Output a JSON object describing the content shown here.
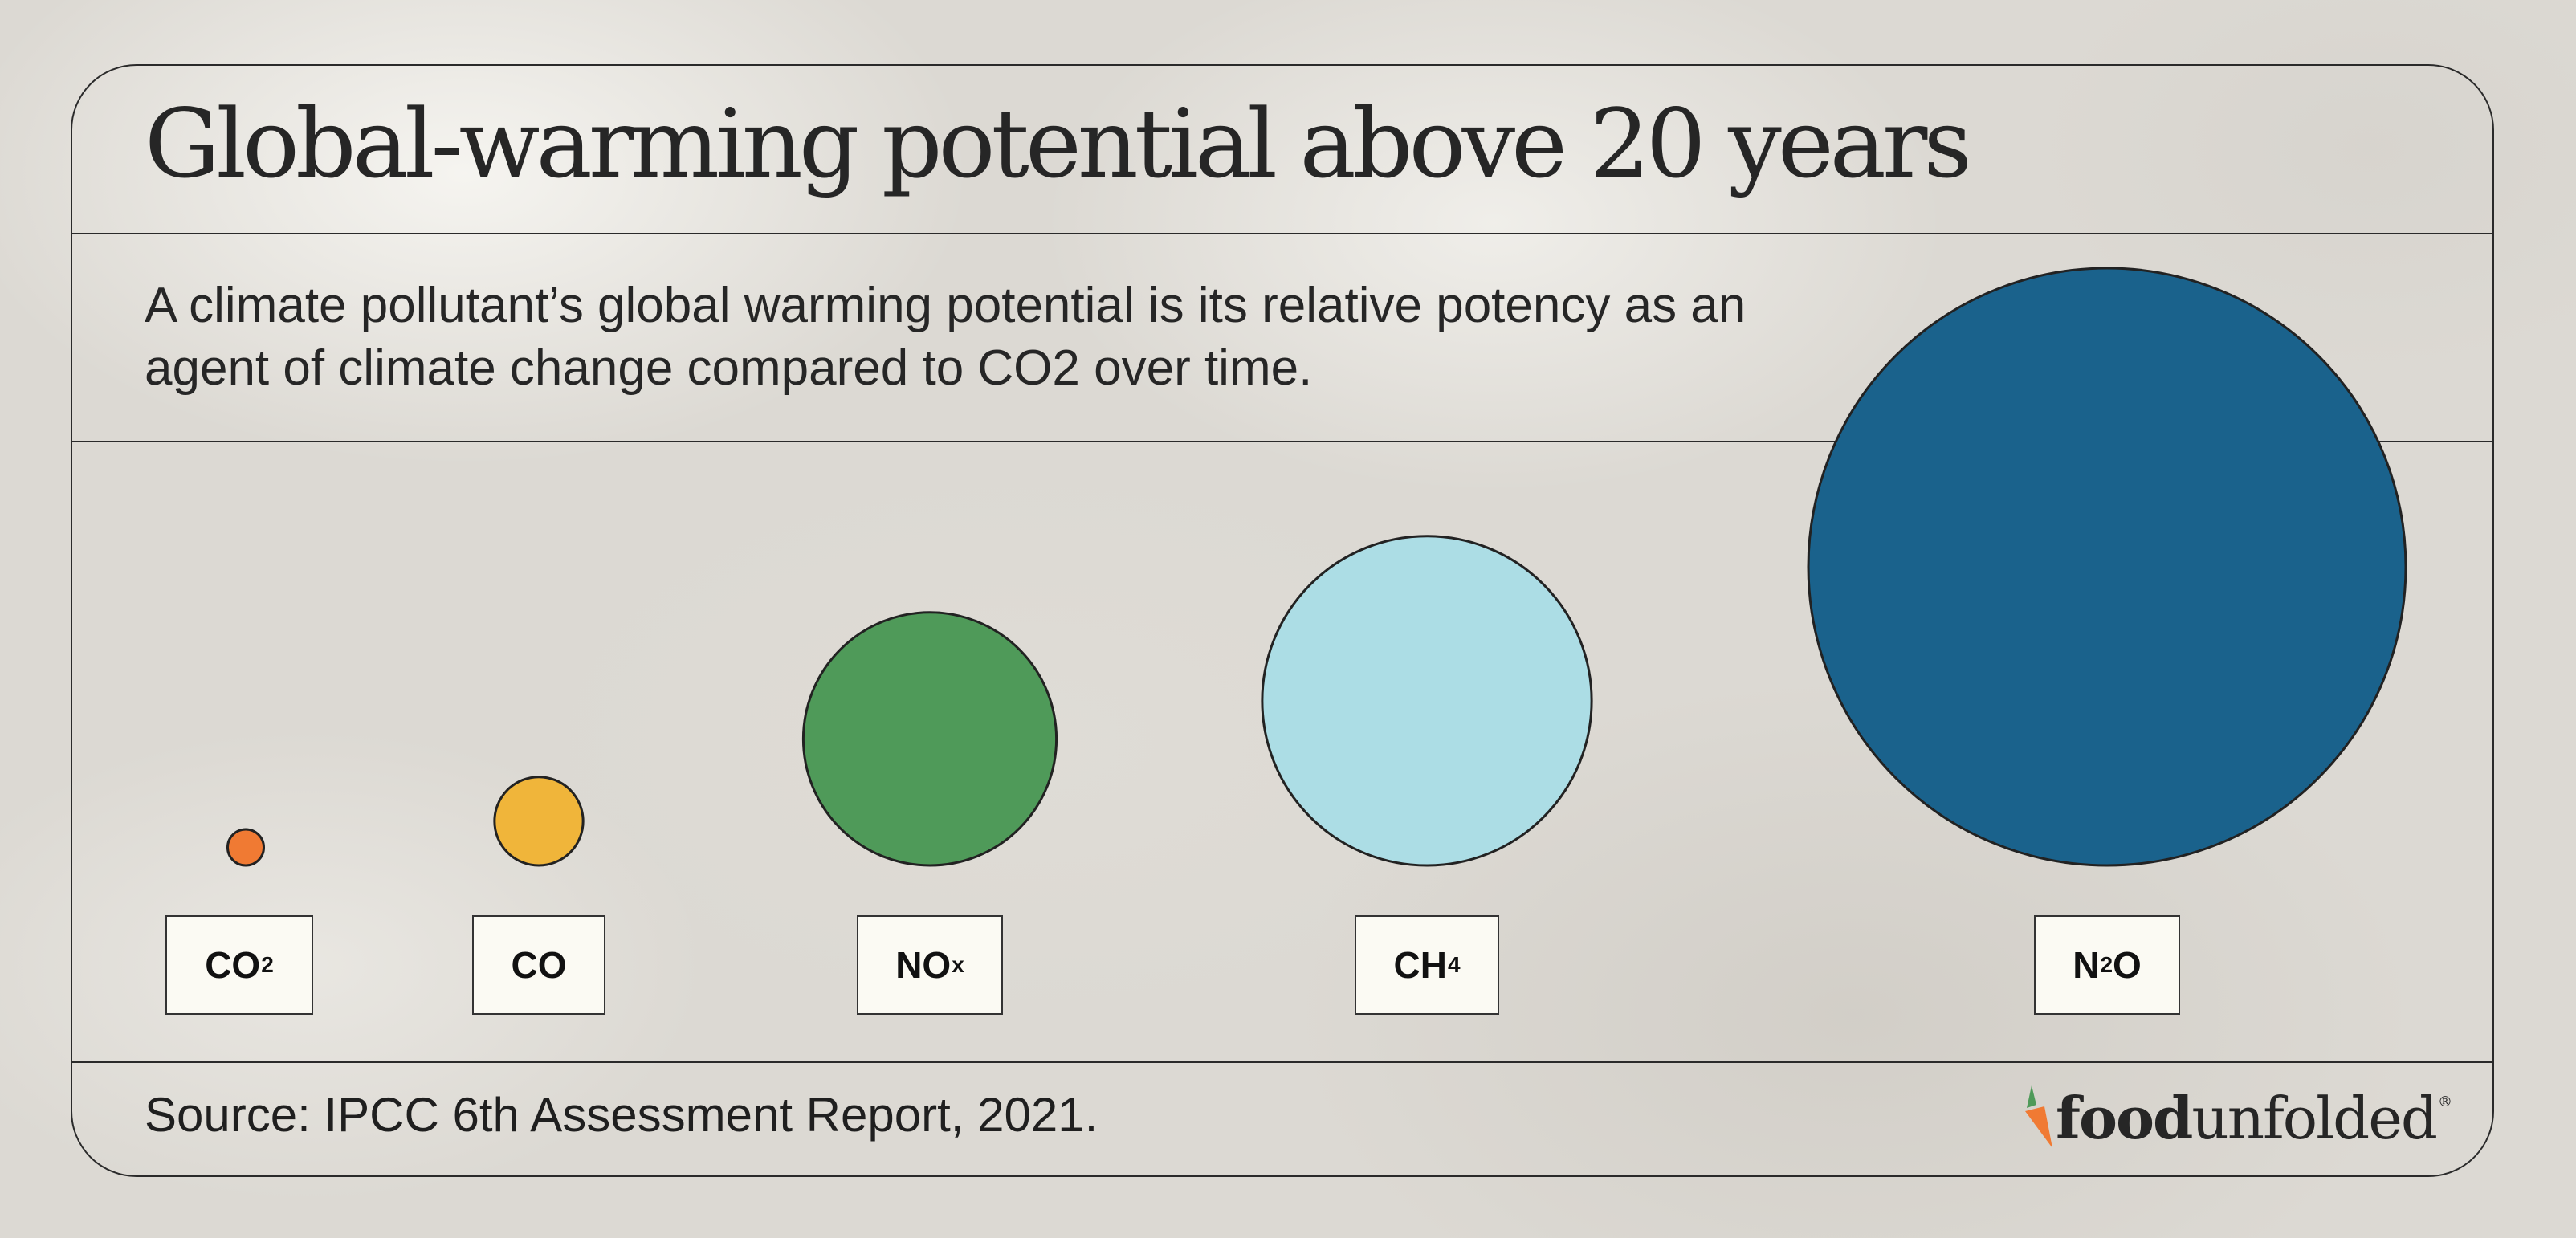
{
  "header": {
    "title": "Global-warming potential above 20 years",
    "subtitle": "A climate pollutant’s global warming potential is its relative potency as an agent of climate change compared to CO2 over time."
  },
  "footer": {
    "source": "Source: IPCC 6th Assessment Report, 2021.",
    "brand_bold": "food",
    "brand_light": "unfolded",
    "brand_mark": "®"
  },
  "chart_data": {
    "type": "bubble",
    "categories": [
      "CO2",
      "CO",
      "NOx",
      "CH4",
      "N2O"
    ],
    "labels": [
      {
        "base": "CO",
        "sub": "2"
      },
      {
        "base": "CO",
        "sub": ""
      },
      {
        "base": "NO",
        "sub": "x"
      },
      {
        "base": "CH",
        "sub": "4"
      },
      {
        "base": "N",
        "sub": "2",
        "tail": "O"
      }
    ],
    "values": [
      1,
      6,
      49,
      83,
      273
    ],
    "colors": [
      "#f07a33",
      "#f0b53a",
      "#4f9a59",
      "#acdde5",
      "#1a628c"
    ],
    "title": "Global-warming potential above 20 years",
    "xlabel": "",
    "ylabel": ""
  }
}
